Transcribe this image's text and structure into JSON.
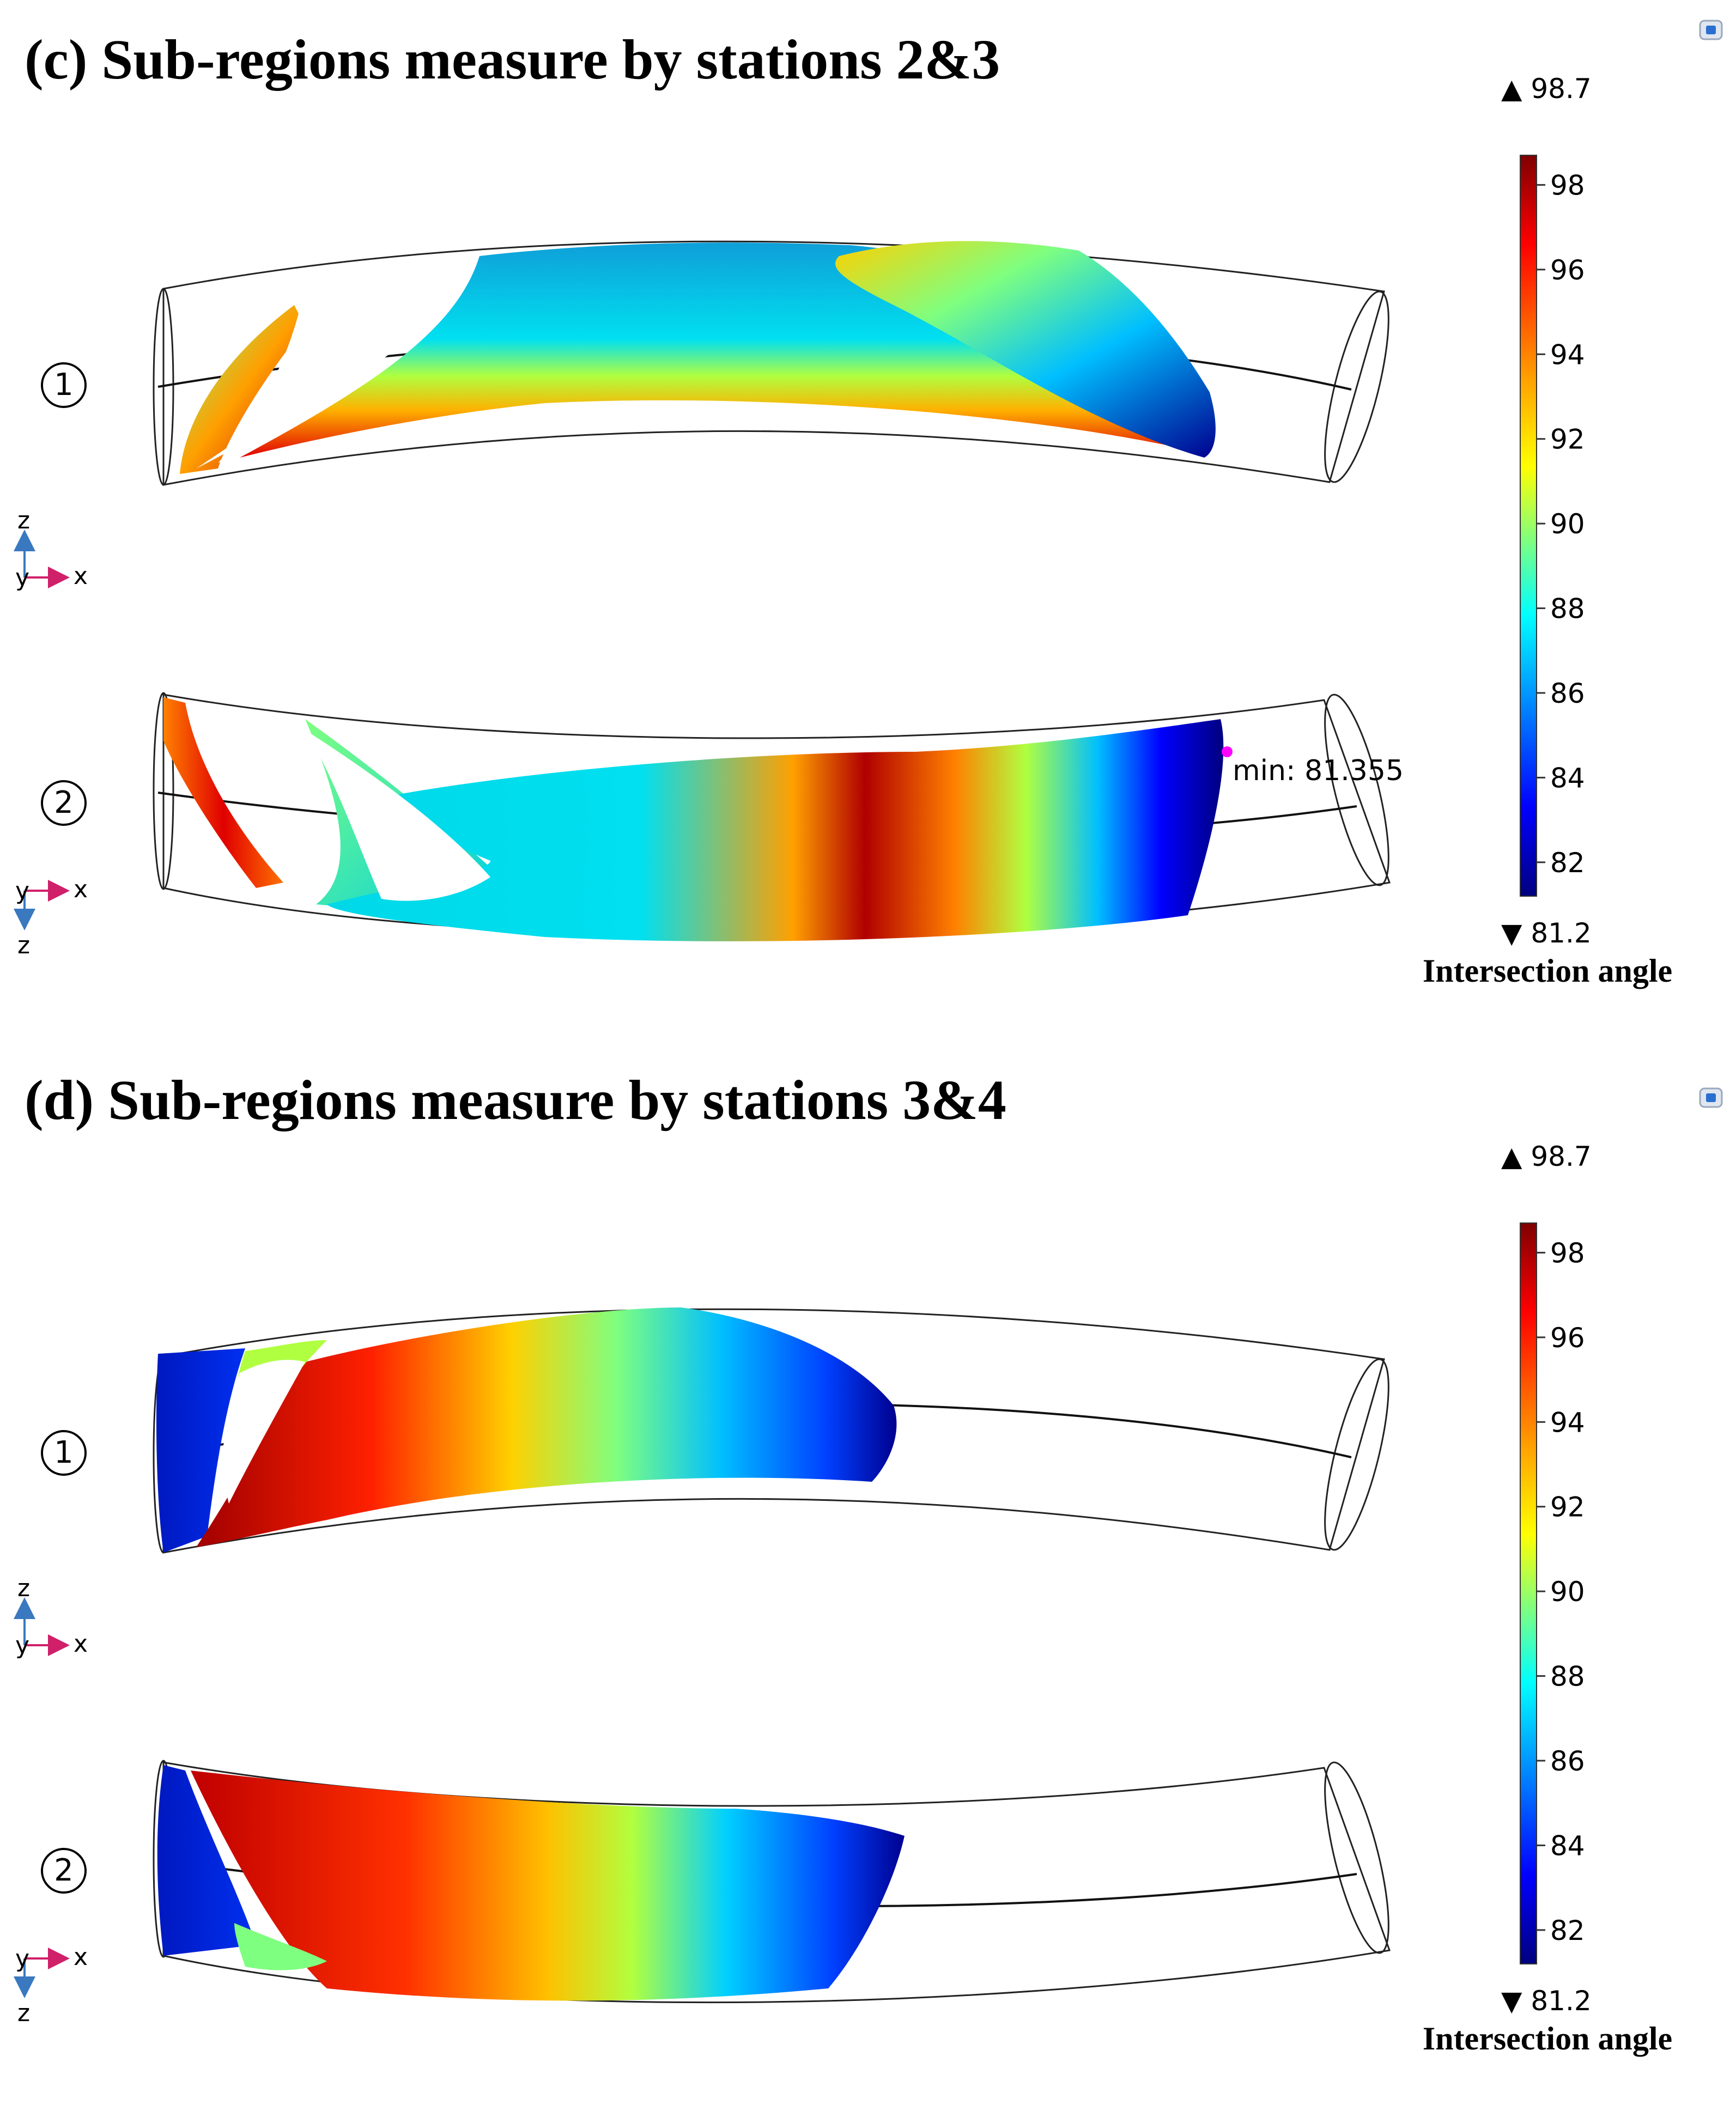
{
  "panels": [
    {
      "title": "(c) Sub-regions measure by stations 2&3",
      "views": [
        {
          "marker": "1",
          "axes": {
            "vertical": "z",
            "depth": "y",
            "horizontal": "x"
          }
        },
        {
          "marker": "2",
          "axes": {
            "vertical": "z",
            "depth": "y",
            "horizontal": "x"
          },
          "annotation": "min: 81.355"
        }
      ],
      "colorbar": {
        "max_label": "▲ 98.7",
        "min_label": "▼ 81.2",
        "ticks": [
          "98",
          "96",
          "94",
          "92",
          "90",
          "88",
          "86",
          "84",
          "82"
        ],
        "title": "Intersection angle",
        "range": [
          81.2,
          98.7
        ]
      }
    },
    {
      "title": "(d) Sub-regions measure by stations 3&4",
      "views": [
        {
          "marker": "1",
          "axes": {
            "vertical": "z",
            "depth": "y",
            "horizontal": "x"
          }
        },
        {
          "marker": "2",
          "axes": {
            "vertical": "z",
            "depth": "y",
            "horizontal": "x"
          }
        }
      ],
      "colorbar": {
        "max_label": "▲ 98.7",
        "min_label": "▼ 81.2",
        "ticks": [
          "98",
          "96",
          "94",
          "92",
          "90",
          "88",
          "86",
          "84",
          "82"
        ],
        "title": "Intersection angle",
        "range": [
          81.2,
          98.7
        ]
      }
    }
  ],
  "colors": {
    "jet": [
      "#00007f",
      "#0000ff",
      "#007fff",
      "#00ffff",
      "#7fff7f",
      "#ffff00",
      "#ff7f00",
      "#ff0000",
      "#7f0000"
    ],
    "min_marker": "#ff00ff",
    "axis_arrow_x": "#d0206a",
    "axis_arrow_z": "#3a78c0"
  },
  "icons": [
    "comsol-icon",
    "axis-triad-icon"
  ]
}
